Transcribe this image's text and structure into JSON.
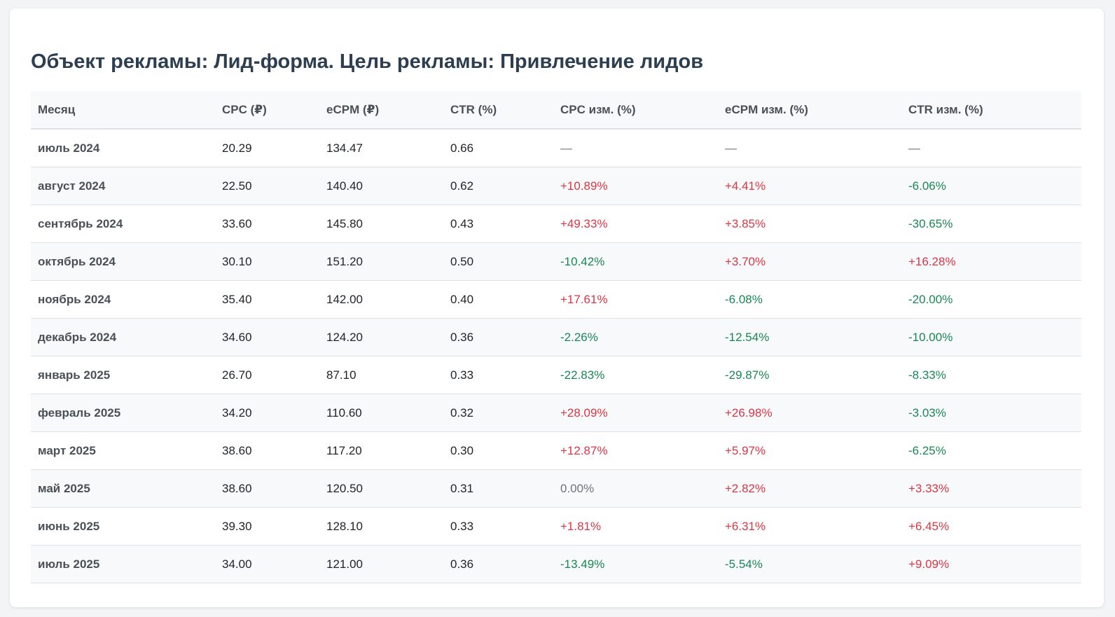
{
  "title": "Объект рекламы: Лид-форма. Цель рекламы: Привлечение лидов",
  "colors": {
    "increase": "#dc3545",
    "decrease": "#198754",
    "neutral": "#6c757d"
  },
  "headers": [
    "Месяц",
    "CPC (₽)",
    "eCPM (₽)",
    "CTR (%)",
    "CPC изм. (%)",
    "eCPM изм. (%)",
    "CTR изм. (%)"
  ],
  "rows": [
    {
      "month": "июль 2024",
      "cpc": "20.29",
      "ecpm": "134.47",
      "ctr": "0.66",
      "cpc_change": "—",
      "ecpm_change": "—",
      "ctr_change": "—"
    },
    {
      "month": "август 2024",
      "cpc": "22.50",
      "ecpm": "140.40",
      "ctr": "0.62",
      "cpc_change": "+10.89%",
      "ecpm_change": "+4.41%",
      "ctr_change": "-6.06%"
    },
    {
      "month": "сентябрь 2024",
      "cpc": "33.60",
      "ecpm": "145.80",
      "ctr": "0.43",
      "cpc_change": "+49.33%",
      "ecpm_change": "+3.85%",
      "ctr_change": "-30.65%"
    },
    {
      "month": "октябрь 2024",
      "cpc": "30.10",
      "ecpm": "151.20",
      "ctr": "0.50",
      "cpc_change": "-10.42%",
      "ecpm_change": "+3.70%",
      "ctr_change": "+16.28%"
    },
    {
      "month": "ноябрь 2024",
      "cpc": "35.40",
      "ecpm": "142.00",
      "ctr": "0.40",
      "cpc_change": "+17.61%",
      "ecpm_change": "-6.08%",
      "ctr_change": "-20.00%"
    },
    {
      "month": "декабрь 2024",
      "cpc": "34.60",
      "ecpm": "124.20",
      "ctr": "0.36",
      "cpc_change": "-2.26%",
      "ecpm_change": "-12.54%",
      "ctr_change": "-10.00%"
    },
    {
      "month": "январь 2025",
      "cpc": "26.70",
      "ecpm": "87.10",
      "ctr": "0.33",
      "cpc_change": "-22.83%",
      "ecpm_change": "-29.87%",
      "ctr_change": "-8.33%"
    },
    {
      "month": "февраль 2025",
      "cpc": "34.20",
      "ecpm": "110.60",
      "ctr": "0.32",
      "cpc_change": "+28.09%",
      "ecpm_change": "+26.98%",
      "ctr_change": "-3.03%"
    },
    {
      "month": "март 2025",
      "cpc": "38.60",
      "ecpm": "117.20",
      "ctr": "0.30",
      "cpc_change": "+12.87%",
      "ecpm_change": "+5.97%",
      "ctr_change": "-6.25%"
    },
    {
      "month": "май 2025",
      "cpc": "38.60",
      "ecpm": "120.50",
      "ctr": "0.31",
      "cpc_change": "0.00%",
      "ecpm_change": "+2.82%",
      "ctr_change": "+3.33%"
    },
    {
      "month": "июнь 2025",
      "cpc": "39.30",
      "ecpm": "128.10",
      "ctr": "0.33",
      "cpc_change": "+1.81%",
      "ecpm_change": "+6.31%",
      "ctr_change": "+6.45%"
    },
    {
      "month": "июль 2025",
      "cpc": "34.00",
      "ecpm": "121.00",
      "ctr": "0.36",
      "cpc_change": "-13.49%",
      "ecpm_change": "-5.54%",
      "ctr_change": "+9.09%"
    }
  ]
}
